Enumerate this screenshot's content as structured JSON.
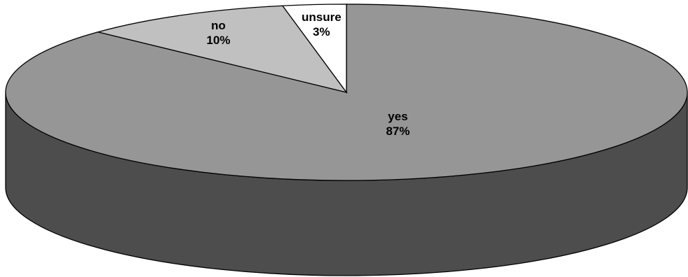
{
  "chart_data": {
    "type": "pie",
    "style": "3d",
    "slices": [
      {
        "label": "yes",
        "value": 87,
        "percent_label": "87%",
        "color": "#969696"
      },
      {
        "label": "no",
        "value": 10,
        "percent_label": "10%",
        "color": "#c0c0c0"
      },
      {
        "label": "unsure",
        "value": 3,
        "percent_label": "3%",
        "color": "#ffffff"
      }
    ],
    "side_color": "#4d4d4d",
    "outline_color": "#000000",
    "legend": "none",
    "start": "top",
    "direction": "clockwise"
  }
}
